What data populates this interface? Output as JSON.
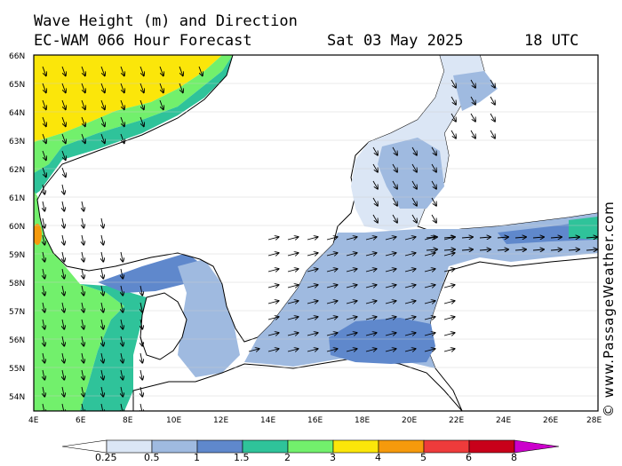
{
  "header": {
    "title": "Wave Height (m) and Direction",
    "model": "EC-WAM 066 Hour Forecast",
    "date": "Sat 03 May 2025",
    "time": "18 UTC"
  },
  "credit": "© www.PassageWeather.com",
  "map": {
    "lat_ticks": [
      "54N",
      "55N",
      "56N",
      "57N",
      "58N",
      "59N",
      "60N",
      "61N",
      "62N",
      "63N",
      "64N",
      "65N",
      "66N"
    ],
    "lon_ticks": [
      "4E",
      "6E",
      "8E",
      "10E",
      "12E",
      "14E",
      "16E",
      "18E",
      "20E",
      "22E",
      "24E",
      "26E",
      "28E"
    ]
  },
  "colorbar": {
    "labels": [
      "0.25",
      "0.5",
      "1",
      "1.5",
      "2",
      "3",
      "4",
      "5",
      "6",
      "8"
    ],
    "colors": [
      "#ffffff",
      "#dbe6f5",
      "#9fbae0",
      "#5f88cc",
      "#2fc39a",
      "#72f06c",
      "#fbe60a",
      "#f59a0c",
      "#ee3b3b",
      "#c8001a",
      "#cc00cc"
    ]
  }
}
